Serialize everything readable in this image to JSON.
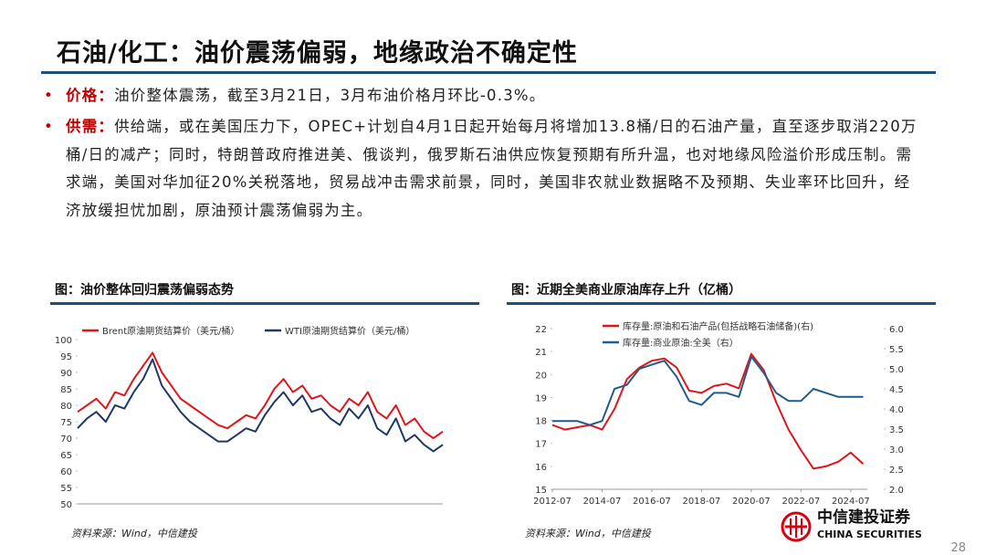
{
  "header": {
    "title": "石油/化工：油价震荡偏弱，地缘政治不确定性"
  },
  "bullets": [
    {
      "label": "价格：",
      "text": "油价整体震荡，截至3月21日，3月布油价格月环比-0.3%。"
    },
    {
      "label": "供需：",
      "text": "供给端，或在美国压力下，OPEC+计划自4月1日起开始每月将增加13.8桶/日的石油产量，直至逐步取消220万桶/日的减产；同时，特朗普政府推进美、俄谈判，俄罗斯石油供应恢复预期有所升温，也对地缘风险溢价形成压制。需求端，美国对华加征20%关税落地，贸易战冲击需求前景，同时，美国非农就业数据略不及预期、失业率环比回升，经济放缓担忧加剧，原油预计震荡偏弱为主。"
    }
  ],
  "chart_data": [
    {
      "type": "line",
      "title": "图：油价整体回归震荡偏弱态势",
      "categories": [
        null,
        null,
        null,
        null,
        null,
        null,
        null,
        null,
        null,
        null,
        null,
        null,
        null,
        null,
        null,
        null,
        null,
        null,
        null,
        null,
        null,
        null,
        null,
        null,
        null,
        null,
        null,
        null,
        null,
        null,
        null,
        null,
        null,
        null,
        null,
        null,
        null,
        null,
        null,
        null
      ],
      "series": [
        {
          "name": "Brent原油期货结算价（美元/桶）",
          "color": "#e0151b",
          "values": [
            78,
            80,
            82,
            79,
            84,
            83,
            88,
            92,
            96,
            90,
            86,
            82,
            80,
            78,
            76,
            74,
            73,
            75,
            77,
            76,
            80,
            85,
            88,
            84,
            86,
            82,
            83,
            80,
            78,
            82,
            80,
            84,
            78,
            76,
            80,
            74,
            76,
            72,
            70,
            72
          ]
        },
        {
          "name": "WTI原油期货结算价（美元/桶）",
          "color": "#1f3864",
          "values": [
            73,
            76,
            78,
            75,
            80,
            79,
            84,
            88,
            94,
            86,
            82,
            78,
            75,
            73,
            71,
            69,
            69,
            71,
            73,
            72,
            77,
            81,
            84,
            80,
            83,
            78,
            79,
            76,
            74,
            79,
            76,
            80,
            73,
            71,
            76,
            69,
            71,
            68,
            66,
            68
          ]
        }
      ],
      "ylim": [
        50,
        100
      ],
      "yticks": [
        50,
        55,
        60,
        65,
        70,
        75,
        80,
        85,
        90,
        95,
        100
      ],
      "grid": false,
      "source": "资料来源：Wind，中信建投"
    },
    {
      "type": "line",
      "title": "图：近期全美商业原油库存上升（亿桶）",
      "x": [
        "2012-07",
        "2013-01",
        "2013-07",
        "2014-01",
        "2014-07",
        "2015-01",
        "2015-07",
        "2016-01",
        "2016-07",
        "2017-01",
        "2017-07",
        "2018-01",
        "2018-07",
        "2019-01",
        "2019-07",
        "2020-01",
        "2020-07",
        "2021-01",
        "2021-07",
        "2022-01",
        "2022-07",
        "2023-01",
        "2023-07",
        "2024-01",
        "2024-07",
        "2025-01"
      ],
      "series": [
        {
          "name": "库存量:原油和石油产品(包括战略石油储备)(右)",
          "color": "#e0151b",
          "values": [
            17.8,
            17.6,
            17.7,
            17.8,
            17.6,
            18.5,
            19.8,
            20.3,
            20.6,
            20.7,
            20.3,
            19.3,
            19.2,
            19.5,
            19.6,
            19.4,
            20.9,
            20.2,
            18.8,
            17.6,
            16.7,
            15.9,
            16.0,
            16.2,
            16.6,
            16.1
          ]
        },
        {
          "name": "库存量:商业原油:全美（右）",
          "color": "#1f5c8b",
          "axis": "y2",
          "values": [
            3.7,
            3.7,
            3.7,
            3.6,
            3.7,
            4.5,
            4.6,
            5.0,
            5.1,
            5.2,
            4.8,
            4.2,
            4.1,
            4.4,
            4.4,
            4.3,
            5.3,
            4.9,
            4.4,
            4.2,
            4.2,
            4.5,
            4.4,
            4.3,
            4.3,
            4.3
          ]
        }
      ],
      "xlim": [
        "2012-07",
        "2025-03"
      ],
      "xticks": [
        "2012-07",
        "2014-07",
        "2016-07",
        "2018-07",
        "2020-07",
        "2022-07",
        "2024-07"
      ],
      "ylim": [
        15,
        22
      ],
      "yticks": [
        15,
        16,
        17,
        18,
        19,
        20,
        21,
        22
      ],
      "y2lim": [
        2,
        6
      ],
      "y2ticks": [
        {
          "value": 2,
          "label": "2.0"
        },
        {
          "value": 2.5,
          "label": "2.5"
        },
        {
          "value": 3,
          "label": "3.0"
        },
        {
          "value": 3.5,
          "label": "3.5"
        },
        {
          "value": 4,
          "label": "4.0"
        },
        {
          "value": 4.5,
          "label": "4.5"
        },
        {
          "value": 5,
          "label": "5.0"
        },
        {
          "value": 5.5,
          "label": "5.5"
        },
        {
          "value": 6,
          "label": "6.0"
        }
      ],
      "grid": false,
      "source": "资料来源：Wind，中信建投"
    }
  ],
  "logo": {
    "name": "中信建投证券",
    "english": "CHINA SECURITIES"
  },
  "page_number": "28"
}
